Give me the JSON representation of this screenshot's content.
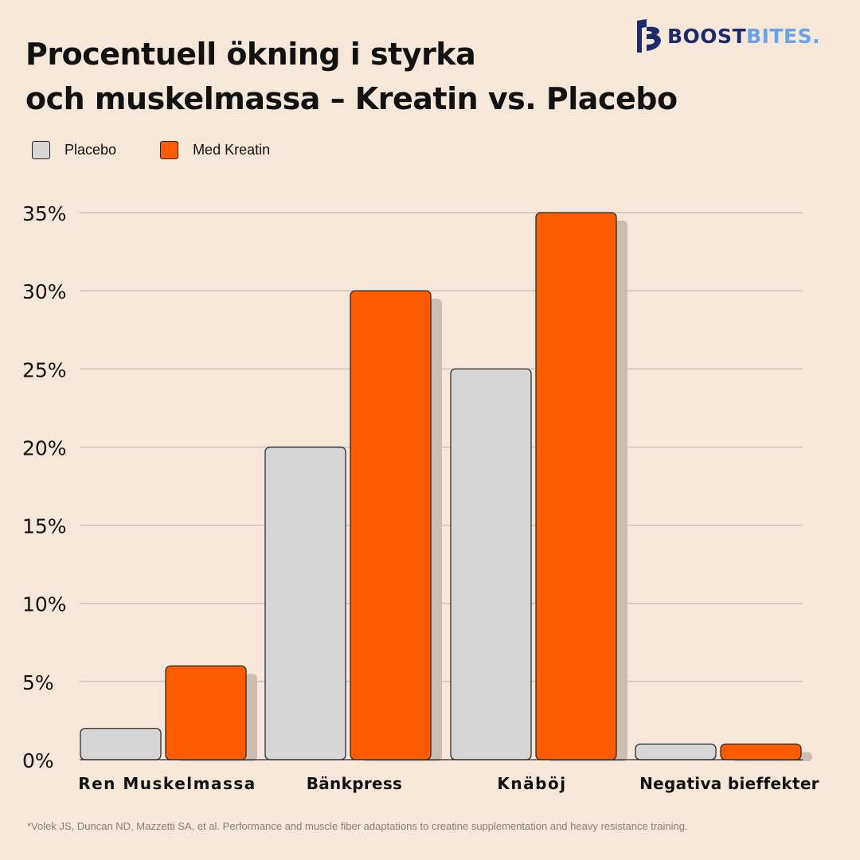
{
  "brand": {
    "name_part1": "BOOST",
    "name_part2": "BITES.",
    "logo_icon": "b-logo-icon",
    "primary_color": "#1d2a6b",
    "secondary_color": "#6aa4e8"
  },
  "title": {
    "line1": "Procentuell ökning i styrka",
    "line2": "och muskelmassa – Kreatin vs. Placebo"
  },
  "colors": {
    "background": "#f5e7da",
    "placebo": "#d6d6d6",
    "kreatin": "#ff5c00",
    "shadow": "#cbbdb2",
    "grid": "#c9bdb3"
  },
  "footnote": "*Volek JS, Duncan ND, Mazzetti SA, et al. Performance and muscle fiber adaptations to creatine supplementation and heavy resistance training.",
  "chart_data": {
    "type": "bar",
    "title": "Procentuell ökning i styrka och muskelmassa – Kreatin vs. Placebo",
    "categories": [
      "Ren Muskelmassa",
      "Bänkpress",
      "Knäböj",
      "Negativa bieffekter"
    ],
    "series": [
      {
        "name": "Placebo",
        "values": [
          2,
          20,
          25,
          1
        ]
      },
      {
        "name": "Med Kreatin",
        "values": [
          6,
          30,
          35,
          1
        ]
      }
    ],
    "ylim": [
      0,
      35
    ],
    "yticks": [
      0,
      5,
      10,
      15,
      20,
      25,
      30,
      35
    ],
    "ytick_labels": [
      "0%",
      "5%",
      "10%",
      "15%",
      "20%",
      "25%",
      "30%",
      "35%"
    ],
    "xlabel": "",
    "ylabel": "",
    "grid": true,
    "legend": "top-left"
  }
}
